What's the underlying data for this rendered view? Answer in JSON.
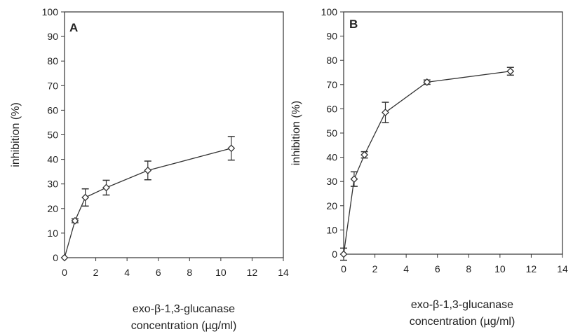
{
  "chart_data": [
    {
      "type": "line",
      "panel": "A",
      "title": "",
      "xlabel_line1": "exo-β-1,3-glucanase",
      "xlabel_line2": "concentration (µg/ml)",
      "ylabel": "inhibition (%)",
      "xlim": [
        0,
        14
      ],
      "ylim": [
        0,
        100
      ],
      "xticks": [
        0,
        2,
        4,
        6,
        8,
        10,
        12,
        14
      ],
      "yticks": [
        0,
        10,
        20,
        30,
        40,
        50,
        60,
        70,
        80,
        90,
        100
      ],
      "grid": false,
      "marker": "diamond",
      "series": [
        {
          "x": [
            0,
            0.67,
            1.33,
            2.67,
            5.33,
            10.67
          ],
          "y": [
            0,
            15,
            24.5,
            28.5,
            35.5,
            44.5
          ],
          "error": [
            0,
            0.8,
            3.5,
            3,
            3.8,
            4.8
          ]
        }
      ]
    },
    {
      "type": "line",
      "panel": "B",
      "title": "",
      "xlabel_line1": "exo-β-1,3-glucanase",
      "xlabel_line2": "concentration (µg/ml)",
      "ylabel": "inhibition (%)",
      "xlim": [
        0,
        14
      ],
      "ylim": [
        0,
        100
      ],
      "xticks": [
        0,
        2,
        4,
        6,
        8,
        10,
        12,
        14
      ],
      "yticks": [
        0,
        10,
        20,
        30,
        40,
        50,
        60,
        70,
        80,
        90,
        100
      ],
      "grid": false,
      "marker": "diamond",
      "series": [
        {
          "x": [
            0,
            0.67,
            1.33,
            2.67,
            5.33,
            10.67
          ],
          "y": [
            0,
            31,
            41,
            58.5,
            71,
            75.5
          ],
          "error": [
            2.5,
            3,
            1.3,
            4.2,
            0.9,
            1.6
          ]
        }
      ]
    }
  ]
}
